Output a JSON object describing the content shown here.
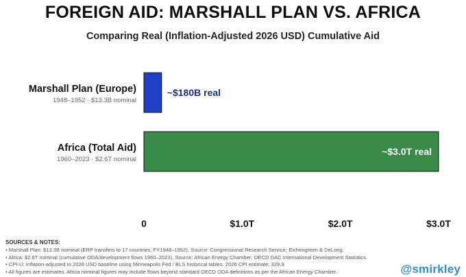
{
  "chart_data": {
    "type": "bar",
    "orientation": "horizontal",
    "title": "FOREIGN AID: MARSHALL PLAN VS. AFRICA",
    "subtitle": "Comparing Real (Inflation-Adjusted 2026 USD) Cumulative Aid",
    "xlim": [
      0,
      3.0
    ],
    "x_tick_values": [
      0,
      1.0,
      2.0,
      3.0
    ],
    "x_tick_labels": [
      "0",
      "$1.0T",
      "$2.0T",
      "$3.0T"
    ],
    "grid": false,
    "bars": [
      {
        "label": "Marshall Plan (Europe)",
        "sublabel": "1948–1952 · $13.3B nominal",
        "value": 0.18,
        "value_label": "~$180B real",
        "color": "#1f3fc4",
        "label_position": "outside"
      },
      {
        "label": "Africa (Total Aid)",
        "sublabel": "1960–2023 · $2.6T nominal",
        "value": 3.0,
        "value_label": "~$3.0T real",
        "color": "#3a8a4a",
        "label_position": "inside"
      }
    ]
  },
  "notes": {
    "heading": "SOURCES & NOTES:",
    "lines": [
      "• Marshall Plan: $13.3B nominal (ERP transfers to 17 countries, FY1948–1952). Source: Congressional Research Service; Eichengreen & DeLong.",
      "• Africa: $2.6T nominal (cumulative ODA/development flows 1960–2023). Source: African Energy Chamber; OECD DAC International Development Statistics.",
      "• CPI-U: Inflation-adjusted to 2026 USD baseline using Minneapolis Fed / BLS historical tables. 2026 CPI estimate: 329.9.",
      "• All figures are estimates. Africa nominal figures may include flows beyond standard OECD ODA definitions as per the African Energy Chamber."
    ]
  },
  "watermark": "@smirkley"
}
